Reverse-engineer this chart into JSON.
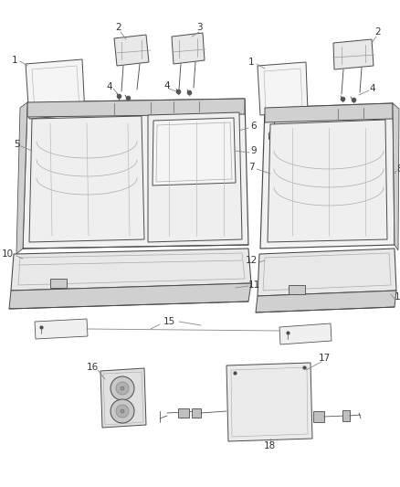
{
  "bg_color": "#ffffff",
  "line_color": "#4a4a4a",
  "lw": 0.7,
  "fig_w": 4.38,
  "fig_h": 5.33,
  "dpi": 100
}
